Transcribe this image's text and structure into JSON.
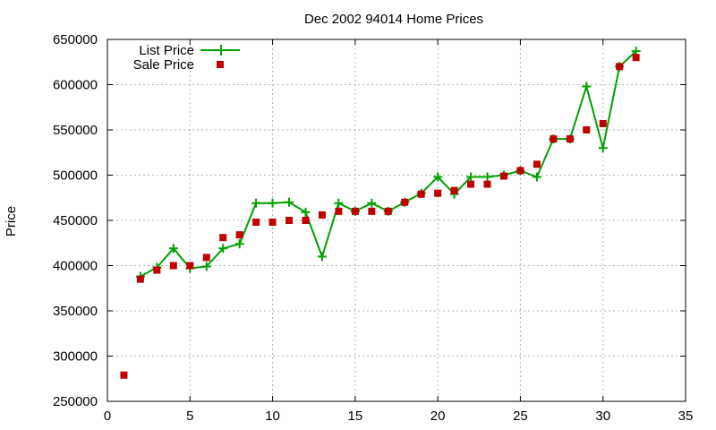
{
  "chart_data": {
    "type": "line",
    "title": "Dec 2002 94014 Home Prices",
    "xlabel": "",
    "ylabel": "Price",
    "xlim": [
      0,
      35
    ],
    "ylim": [
      250000,
      650000
    ],
    "x_ticks": [
      0,
      5,
      10,
      15,
      20,
      25,
      30,
      35
    ],
    "y_ticks": [
      250000,
      300000,
      350000,
      400000,
      450000,
      500000,
      550000,
      600000,
      650000
    ],
    "grid": true,
    "legend_position": "top-left",
    "series": [
      {
        "name": "List Price",
        "style": "line-with-plus-markers",
        "color": "#00a000",
        "x": [
          2,
          3,
          4,
          5,
          6,
          7,
          8,
          9,
          10,
          11,
          12,
          13,
          14,
          15,
          16,
          17,
          18,
          19,
          20,
          21,
          22,
          23,
          24,
          25,
          26,
          27,
          28,
          29,
          30,
          31,
          32
        ],
        "y": [
          388000,
          398000,
          419000,
          397000,
          399000,
          419000,
          424000,
          469000,
          469000,
          470000,
          459000,
          410000,
          469000,
          460000,
          469000,
          460000,
          470000,
          480000,
          498000,
          479000,
          498000,
          498000,
          500000,
          505000,
          498000,
          540000,
          540000,
          598000,
          530000,
          620000,
          637000
        ]
      },
      {
        "name": "Sale Price",
        "style": "square-markers",
        "color": "#c00000",
        "x": [
          1,
          2,
          3,
          4,
          5,
          6,
          7,
          8,
          9,
          10,
          11,
          12,
          13,
          14,
          15,
          16,
          17,
          18,
          19,
          20,
          21,
          22,
          23,
          24,
          25,
          26,
          27,
          28,
          29,
          30,
          31,
          32
        ],
        "y": [
          279000,
          385000,
          395000,
          400000,
          400000,
          409000,
          431000,
          434000,
          448000,
          448000,
          450000,
          450000,
          456000,
          460000,
          460000,
          460000,
          460000,
          470000,
          479000,
          480000,
          483000,
          490000,
          490000,
          499000,
          505000,
          512000,
          540000,
          540000,
          550000,
          557000,
          620000,
          630000
        ]
      }
    ]
  }
}
